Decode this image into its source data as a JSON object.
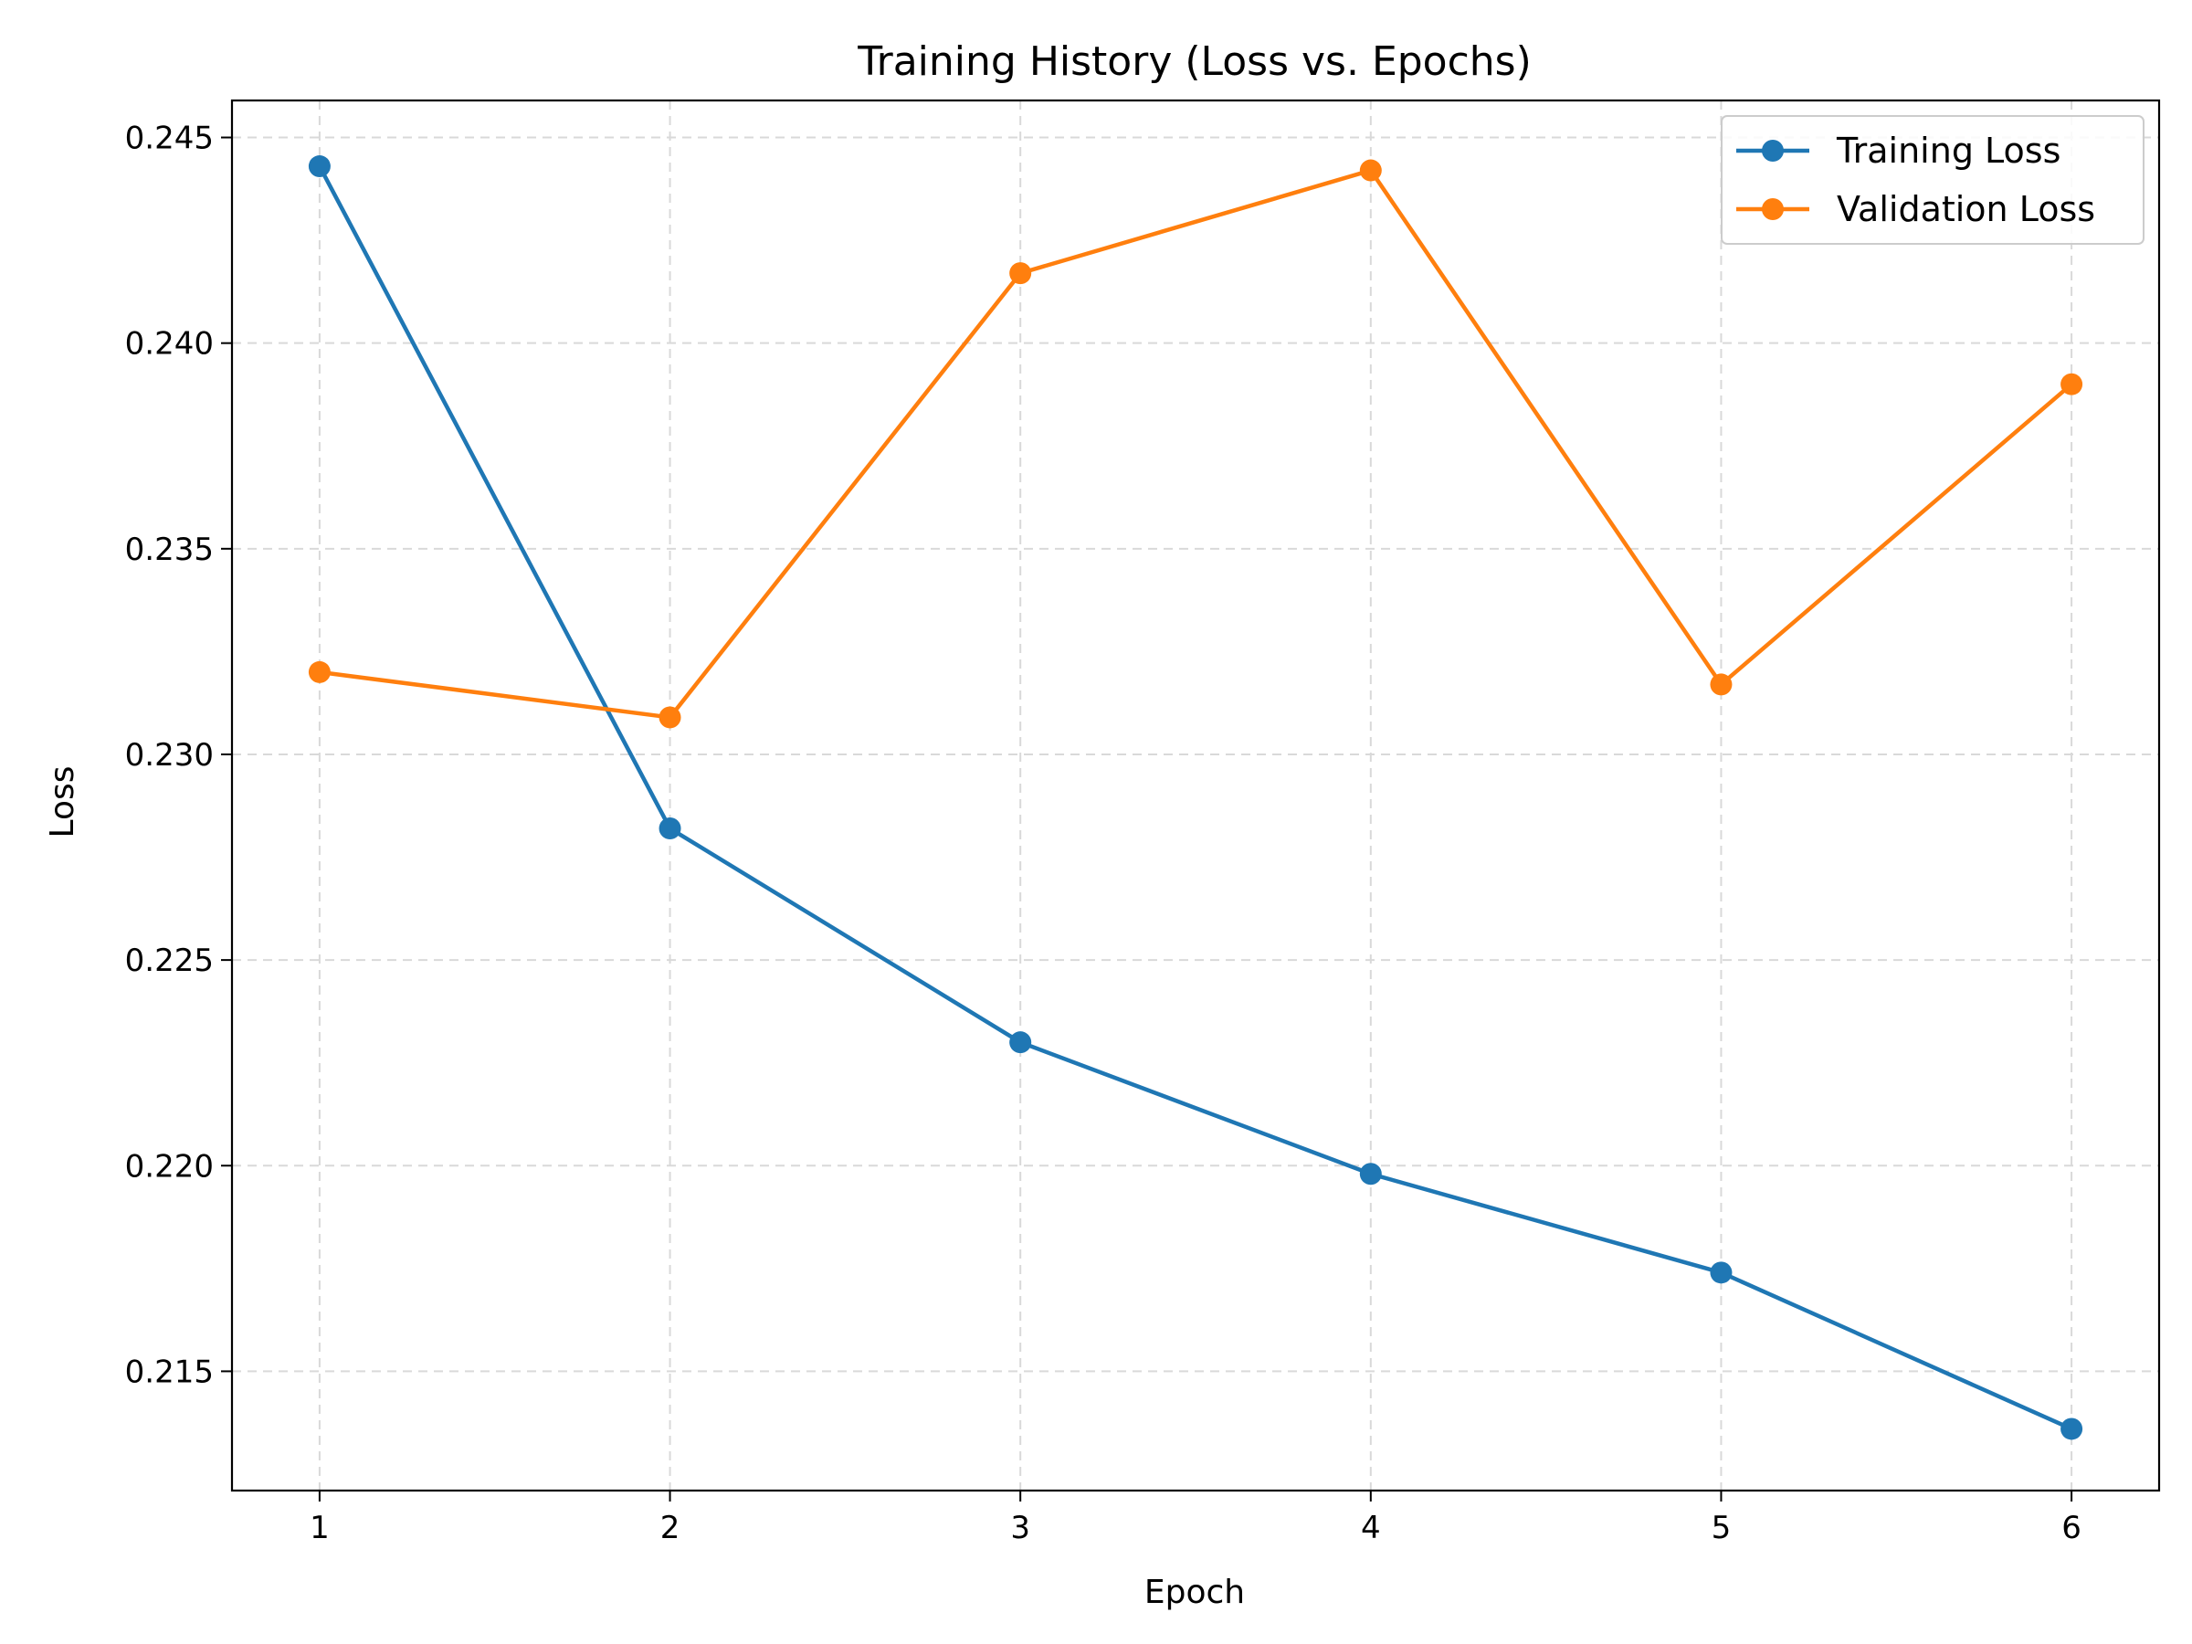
{
  "chart_data": {
    "type": "line",
    "title": "Training History (Loss vs. Epochs)",
    "xlabel": "Epoch",
    "ylabel": "Loss",
    "x": [
      1,
      2,
      3,
      4,
      5,
      6
    ],
    "xticks": [
      "1",
      "2",
      "3",
      "4",
      "5",
      "6"
    ],
    "yticks": [
      "0.215",
      "0.220",
      "0.225",
      "0.230",
      "0.235",
      "0.240",
      "0.245"
    ],
    "xlim": [
      0.75,
      6.25
    ],
    "ylim": [
      0.2121,
      0.2459
    ],
    "grid": true,
    "legend_position": "top-right",
    "series": [
      {
        "name": "Training Loss",
        "color": "#1f77b4",
        "values": [
          0.2443,
          0.2282,
          0.223,
          0.2198,
          0.2174,
          0.2136
        ]
      },
      {
        "name": "Validation Loss",
        "color": "#ff7f0e",
        "values": [
          0.232,
          0.2309,
          0.2417,
          0.2442,
          0.2317,
          0.239
        ]
      }
    ]
  }
}
